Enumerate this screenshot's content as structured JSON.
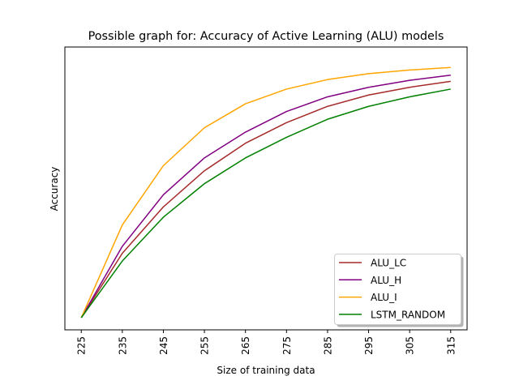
{
  "chart_data": {
    "type": "line",
    "title": "Possible graph for: Accuracy of Active Learning (ALU) models",
    "xlabel": "Size of training data",
    "ylabel": "Accuracy",
    "x": [
      225,
      235,
      245,
      255,
      265,
      275,
      285,
      295,
      305,
      315
    ],
    "x_tick_labels": [
      "225",
      "235",
      "245",
      "255",
      "265",
      "275",
      "285",
      "295",
      "305",
      "315"
    ],
    "xlim": [
      221,
      319
    ],
    "ylim": [
      0,
      1
    ],
    "y_ticks_shown": false,
    "grid": false,
    "legend_position": "lower-right",
    "series": [
      {
        "name": "ALU_LC",
        "color": "#a52a2a",
        "values": [
          0.0,
          0.25,
          0.43,
          0.57,
          0.677,
          0.757,
          0.82,
          0.864,
          0.894,
          0.917
        ]
      },
      {
        "name": "ALU_H",
        "color": "#800080",
        "values": [
          0.0,
          0.277,
          0.477,
          0.62,
          0.72,
          0.8,
          0.857,
          0.894,
          0.921,
          0.941
        ]
      },
      {
        "name": "ALU_I",
        "color": "#ffa500",
        "values": [
          0.0,
          0.36,
          0.59,
          0.737,
          0.83,
          0.887,
          0.924,
          0.947,
          0.961,
          0.971
        ]
      },
      {
        "name": "LSTM_RANDOM",
        "color": "#008000",
        "values": [
          0.0,
          0.22,
          0.39,
          0.52,
          0.62,
          0.7,
          0.77,
          0.82,
          0.857,
          0.887
        ]
      }
    ]
  }
}
